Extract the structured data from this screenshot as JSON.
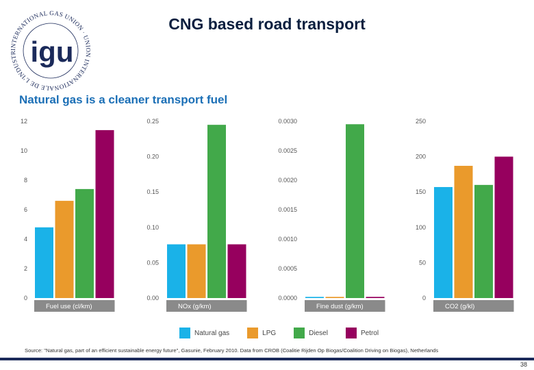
{
  "header": {
    "title": "CNG based road transport",
    "logo_text": "INTERNATIONAL GAS UNION · UNION INTERNATIONALE DE L'INDUSTRIE DU GAZ",
    "logo_mark": "igu"
  },
  "subtitle": "Natural gas is a cleaner transport fuel",
  "chart_data": [
    {
      "type": "bar",
      "xlabel": "Fuel use (cl/km)",
      "categories": [
        "Natural gas",
        "LPG",
        "Diesel",
        "Petrol"
      ],
      "values": [
        4.8,
        6.6,
        7.4,
        11.4
      ],
      "ylim": [
        0,
        12
      ],
      "ticks": [
        "0",
        "2",
        "4",
        "6",
        "8",
        "10",
        "12"
      ],
      "tick_values": [
        0,
        2,
        4,
        6,
        8,
        10,
        12
      ]
    },
    {
      "type": "bar",
      "xlabel": "NOx (g/km)",
      "categories": [
        "Natural gas",
        "LPG",
        "Diesel",
        "Petrol"
      ],
      "values": [
        0.076,
        0.076,
        0.245,
        0.076
      ],
      "ylim": [
        0,
        0.25
      ],
      "ticks": [
        "0.00",
        "0.05",
        "0.10",
        "0.15",
        "0.20",
        "0.25"
      ],
      "tick_values": [
        0,
        0.05,
        0.1,
        0.15,
        0.2,
        0.25
      ]
    },
    {
      "type": "bar",
      "xlabel": "Fine dust (g/km)",
      "categories": [
        "Natural gas",
        "LPG",
        "Diesel",
        "Petrol"
      ],
      "values": [
        2e-05,
        2e-05,
        0.00295,
        2e-05
      ],
      "ylim": [
        0,
        0.003
      ],
      "ticks": [
        "0.0000",
        "0.0005",
        "0.0010",
        "0.0015",
        "0.0020",
        "0.0025",
        "0.0030"
      ],
      "tick_values": [
        0,
        0.0005,
        0.001,
        0.0015,
        0.002,
        0.0025,
        0.003
      ]
    },
    {
      "type": "bar",
      "xlabel": "CO2 (g/kl)",
      "categories": [
        "Natural gas",
        "LPG",
        "Diesel",
        "Petrol"
      ],
      "values": [
        157,
        187,
        160,
        200
      ],
      "ylim": [
        0,
        250
      ],
      "ticks": [
        "0",
        "50",
        "100",
        "150",
        "200",
        "250"
      ],
      "tick_values": [
        0,
        50,
        100,
        150,
        200,
        250
      ]
    }
  ],
  "legend": [
    {
      "label": "Natural gas",
      "color": "#1ab2e8"
    },
    {
      "label": "LPG",
      "color": "#ea9a2c"
    },
    {
      "label": "Diesel",
      "color": "#42a94a"
    },
    {
      "label": "Petrol",
      "color": "#96005e"
    }
  ],
  "source": "Source: \"Natural gas, part of an efficient sustainable energy future\", Gasunie, February 2010. Data from CROB (Coalitie Rijden Op Biogas/Coalition Driving on Biogas), Netherlands",
  "page_number": "38"
}
